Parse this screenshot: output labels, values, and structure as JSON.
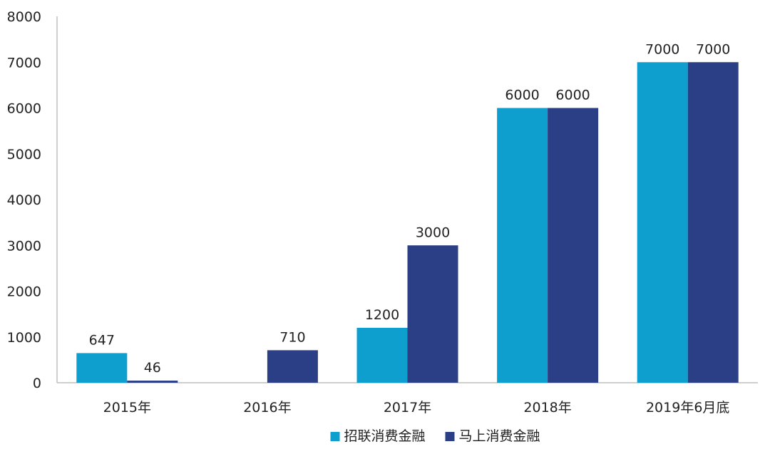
{
  "chart_data": {
    "type": "bar",
    "categories": [
      "2015年",
      "2016年",
      "2017年",
      "2018年",
      "2019年6月底"
    ],
    "series": [
      {
        "name": "招联消费金融",
        "color": "#0f9fcf",
        "values": [
          647,
          null,
          1200,
          6000,
          7000
        ]
      },
      {
        "name": "马上消费金融",
        "color": "#2b3f86",
        "values": [
          46,
          710,
          3000,
          6000,
          7000
        ]
      }
    ],
    "ylim": [
      0,
      8000
    ],
    "yticks": [
      0,
      1000,
      2000,
      3000,
      4000,
      5000,
      6000,
      7000,
      8000
    ],
    "title": "",
    "xlabel": "",
    "ylabel": "",
    "grid": false,
    "legend_position": "bottom-center"
  }
}
